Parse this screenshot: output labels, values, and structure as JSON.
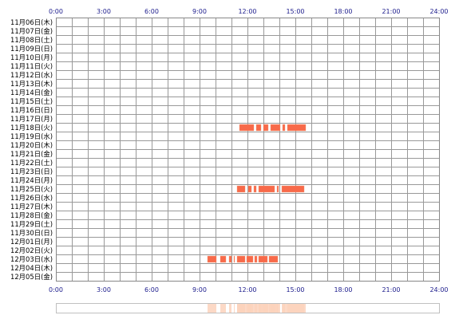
{
  "colors": {
    "grid": "#999999",
    "frame": "#888888",
    "axis_text": "#1c1c8c",
    "date_text": "#000000",
    "bar": "#f86a4a",
    "bar_edge": "#f0a080",
    "summary": "#fbd2bc",
    "summary_border": "#c0c0c0"
  },
  "chart_data": {
    "type": "timeline",
    "title": "",
    "xlabel": "",
    "ylabel": "",
    "x_unit": "hour of day",
    "x_range": [
      0,
      24
    ],
    "x_ticks": [
      "0:00",
      "3:00",
      "6:00",
      "9:00",
      "12:00",
      "15:00",
      "18:00",
      "21:00",
      "24:00"
    ],
    "grid": true,
    "dates": [
      "11月06日(木)",
      "11月07日(金)",
      "11月08日(土)",
      "11月09日(日)",
      "11月10日(月)",
      "11月11日(火)",
      "11月12日(水)",
      "11月13日(木)",
      "11月14日(金)",
      "11月15日(土)",
      "11月16日(日)",
      "11月17日(月)",
      "11月18日(火)",
      "11月19日(水)",
      "11月20日(木)",
      "11月21日(金)",
      "11月22日(土)",
      "11月23日(日)",
      "11月24日(月)",
      "11月25日(火)",
      "11月26日(水)",
      "11月27日(木)",
      "11月28日(金)",
      "11月29日(土)",
      "11月30日(日)",
      "12月01日(月)",
      "12月02日(火)",
      "12月03日(水)",
      "12月04日(木)",
      "12月05日(金)"
    ],
    "activity": [
      {
        "date": "11月18日(火)",
        "segments": [
          [
            11.5,
            12.4
          ],
          [
            12.55,
            12.85
          ],
          [
            13.0,
            13.3
          ],
          [
            13.45,
            14.05
          ],
          [
            14.2,
            14.35
          ],
          [
            14.5,
            15.65
          ]
        ]
      },
      {
        "date": "11月25日(火)",
        "segments": [
          [
            11.35,
            11.85
          ],
          [
            12.05,
            12.25
          ],
          [
            12.4,
            12.55
          ],
          [
            12.7,
            13.7
          ],
          [
            13.85,
            13.95
          ],
          [
            14.15,
            15.55
          ]
        ]
      },
      {
        "date": "12月03日(水)",
        "segments": [
          [
            9.5,
            10.05
          ],
          [
            10.3,
            10.65
          ],
          [
            10.85,
            11.0
          ],
          [
            11.15,
            11.2
          ],
          [
            11.35,
            11.85
          ],
          [
            11.95,
            12.35
          ],
          [
            12.45,
            12.6
          ],
          [
            12.7,
            13.25
          ],
          [
            13.35,
            13.9
          ]
        ]
      }
    ]
  }
}
